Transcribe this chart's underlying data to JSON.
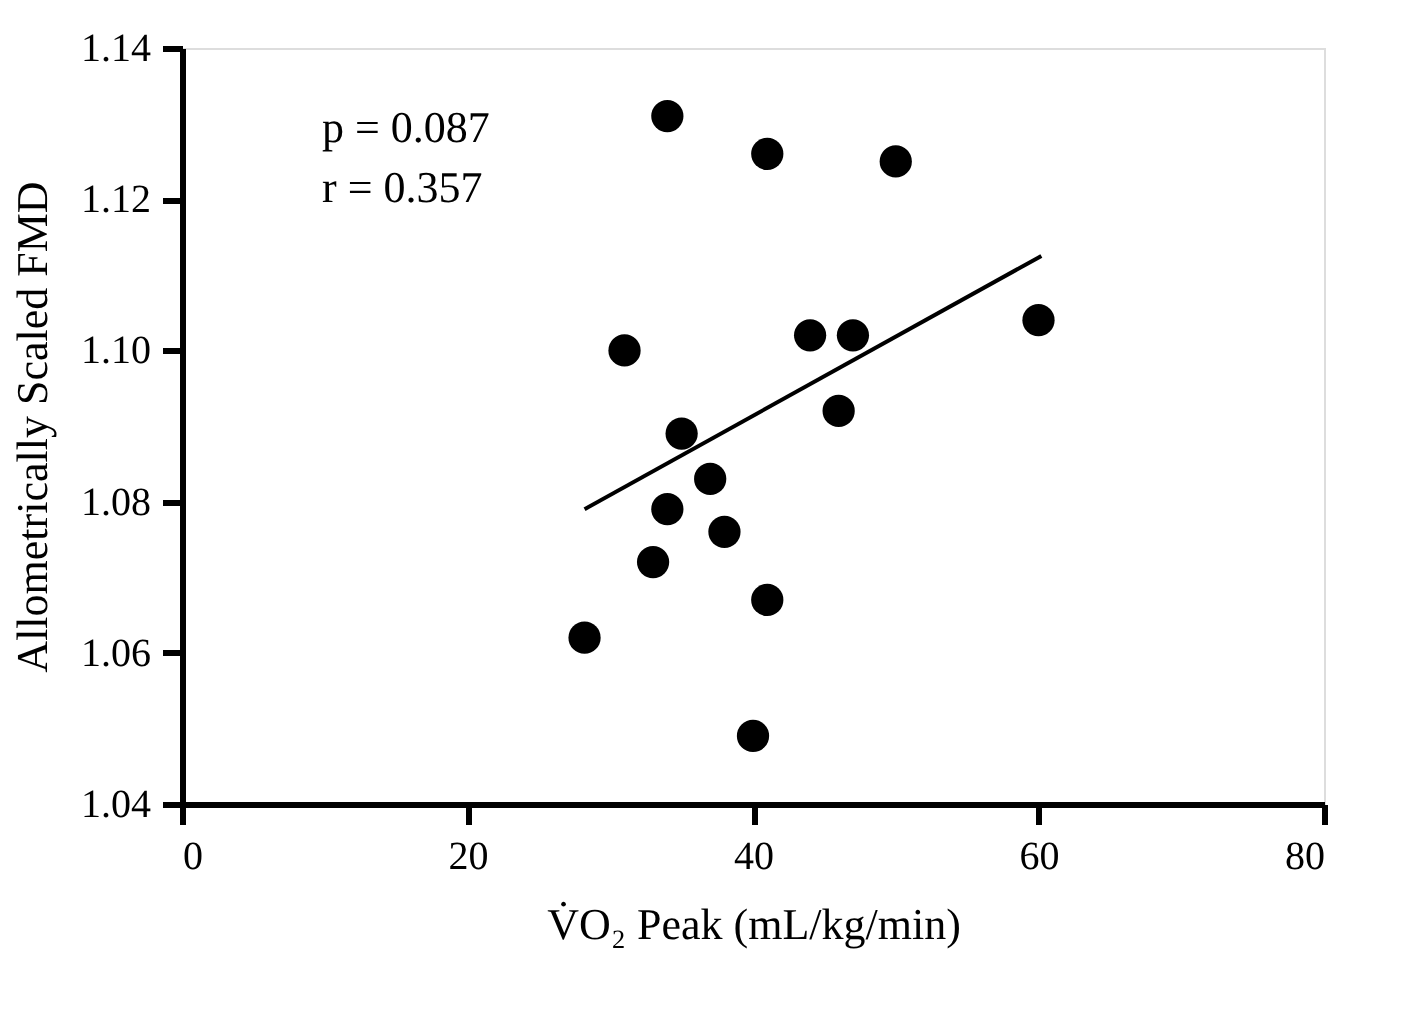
{
  "chart_data": {
    "type": "scatter",
    "xlabel": "V̇O₂ Peak (mL/kg/min)",
    "ylabel": "Allometrically Scaled FMD",
    "x": [
      34,
      41,
      50,
      31,
      44,
      47,
      60,
      35,
      46,
      37,
      34,
      38,
      33,
      41,
      28.2,
      40
    ],
    "series": [
      {
        "color": "#000000",
        "marker": "circle",
        "values": [
          1.131,
          1.126,
          1.125,
          1.1,
          1.102,
          1.102,
          1.104,
          1.089,
          1.092,
          1.083,
          1.079,
          1.076,
          1.072,
          1.067,
          1.062,
          1.049
        ]
      },
      {
        "type": "line",
        "color": "#000000",
        "x": [
          28.2,
          60.2
        ],
        "values": [
          1.079,
          1.1125
        ],
        "line_style": "solid"
      }
    ],
    "annotations": [
      "p = 0.087",
      "r = 0.357"
    ],
    "xlim": [
      0,
      80
    ],
    "xticks": [
      0,
      20,
      40,
      60,
      80
    ],
    "ylim": [
      1.04,
      1.14
    ],
    "yticks": [
      1.04,
      1.06,
      1.08,
      {
        "value": 1.1,
        "label": "1.10"
      },
      1.12,
      1.14
    ],
    "grid": false
  }
}
